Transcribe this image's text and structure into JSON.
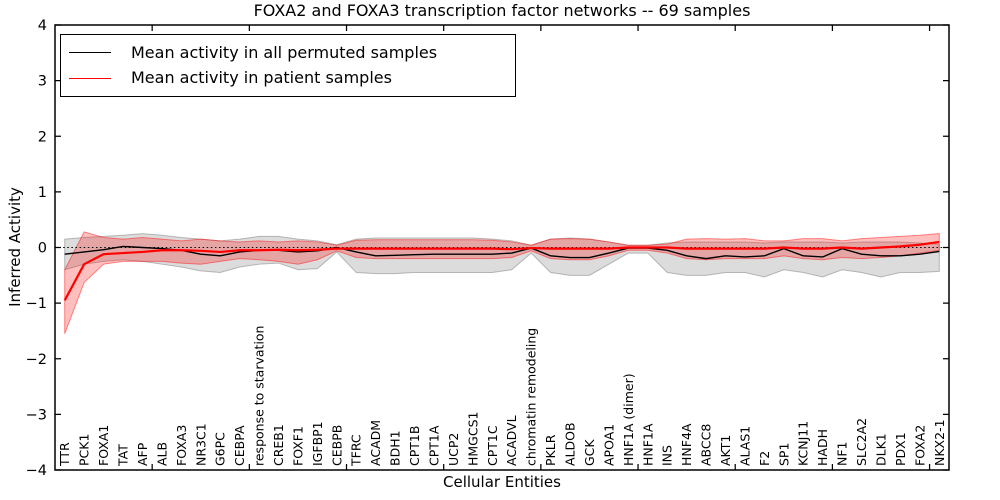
{
  "title": "FOXA2 and FOXA3 transcription factor networks -- 69 samples",
  "axes": {
    "x_label": "Cellular Entities",
    "y_label": "Inferred Activity",
    "y_ticks": [
      {
        "label": "4",
        "value": 4
      },
      {
        "label": "3",
        "value": 3
      },
      {
        "label": "2",
        "value": 2
      },
      {
        "label": "1",
        "value": 1
      },
      {
        "label": "0",
        "value": 0
      },
      {
        "label": "−1",
        "value": -1
      },
      {
        "label": "−2",
        "value": -2
      },
      {
        "label": "−3",
        "value": -3
      },
      {
        "label": "−4",
        "value": -4
      }
    ]
  },
  "legend": {
    "items": [
      {
        "label": "Mean activity in all permuted samples",
        "color": "#000000"
      },
      {
        "label": "Mean activity in patient samples",
        "color": "#ff0000"
      }
    ]
  },
  "colors": {
    "permuted_line": "#000000",
    "patient_line": "#ff0000",
    "permuted_band_fill": "rgba(130,130,130,0.28)",
    "permuted_band_edge": "rgba(110,110,110,0.45)",
    "patient_band_fill": "rgba(255,0,0,0.25)",
    "patient_band_edge": "rgba(255,0,0,0.45)",
    "reference_line": "#000000",
    "spine": "#000000"
  },
  "chart_data": {
    "type": "line",
    "title": "FOXA2 and FOXA3 transcription factor networks -- 69 samples",
    "xlabel": "Cellular Entities",
    "ylabel": "Inferred Activity",
    "ylim": [
      -4,
      4
    ],
    "grid": false,
    "legend_position": "upper left",
    "reference_line": {
      "y": 0,
      "style": "dotted",
      "color": "#000000"
    },
    "x_minor_tick_units": [
      5,
      10,
      15,
      20,
      25,
      30,
      35,
      40,
      45
    ],
    "categories": [
      "TTR",
      "PCK1",
      "FOXA1",
      "TAT",
      "AFP",
      "ALB",
      "FOXA3",
      "NR3C1",
      "G6PC",
      "CEBPA",
      "response to starvation",
      "CREB1",
      "FOXF1",
      "IGFBP1",
      "CEBPB",
      "TFRC",
      "ACADM",
      "BDH1",
      "CPT1B",
      "CPT1A",
      "UCP2",
      "HMGCS1",
      "CPT1C",
      "ACADVL",
      "chromatin remodeling",
      "PKLR",
      "ALDOB",
      "GCK",
      "APOA1",
      "HNF1A (dimer)",
      "HNF1A",
      "INS",
      "HNF4A",
      "ABCC8",
      "AKT1",
      "ALAS1",
      "F2",
      "SP1",
      "KCNJ11",
      "HADH",
      "NF1",
      "SLC2A2",
      "DLK1",
      "PDX1",
      "FOXA2",
      "NKX2-1"
    ],
    "series": [
      {
        "name": "Mean activity in all permuted samples",
        "color": "#000000",
        "line_width": 1.4,
        "values": [
          -0.12,
          -0.08,
          -0.04,
          0.02,
          0.0,
          -0.02,
          -0.05,
          -0.12,
          -0.15,
          -0.08,
          -0.05,
          -0.05,
          -0.08,
          -0.06,
          0.0,
          -0.08,
          -0.15,
          -0.14,
          -0.13,
          -0.12,
          -0.12,
          -0.12,
          -0.12,
          -0.1,
          -0.01,
          -0.15,
          -0.18,
          -0.18,
          -0.1,
          -0.01,
          -0.01,
          -0.05,
          -0.15,
          -0.2,
          -0.15,
          -0.17,
          -0.15,
          -0.02,
          -0.15,
          -0.17,
          -0.02,
          -0.12,
          -0.15,
          -0.15,
          -0.12,
          -0.07
        ],
        "band_upper": [
          0.15,
          0.18,
          0.2,
          0.22,
          0.25,
          0.22,
          0.18,
          0.15,
          0.12,
          0.15,
          0.2,
          0.2,
          0.15,
          0.12,
          0.05,
          0.15,
          0.17,
          0.17,
          0.17,
          0.17,
          0.17,
          0.17,
          0.15,
          0.12,
          0.04,
          0.15,
          0.17,
          0.15,
          0.1,
          0.04,
          0.04,
          0.08,
          0.1,
          0.1,
          0.1,
          0.1,
          0.08,
          0.1,
          0.1,
          0.1,
          0.08,
          0.1,
          0.1,
          0.1,
          0.08,
          0.06
        ],
        "band_lower": [
          -0.4,
          -0.3,
          -0.25,
          -0.22,
          -0.25,
          -0.3,
          -0.35,
          -0.42,
          -0.45,
          -0.35,
          -0.3,
          -0.28,
          -0.4,
          -0.38,
          -0.08,
          -0.45,
          -0.47,
          -0.47,
          -0.45,
          -0.45,
          -0.45,
          -0.45,
          -0.45,
          -0.4,
          -0.1,
          -0.45,
          -0.5,
          -0.5,
          -0.3,
          -0.1,
          -0.1,
          -0.45,
          -0.5,
          -0.5,
          -0.45,
          -0.45,
          -0.53,
          -0.4,
          -0.45,
          -0.53,
          -0.4,
          -0.45,
          -0.53,
          -0.45,
          -0.45,
          -0.43
        ]
      },
      {
        "name": "Mean activity in patient samples",
        "color": "#ff0000",
        "line_width": 2.2,
        "values": [
          -0.95,
          -0.3,
          -0.12,
          -0.1,
          -0.08,
          -0.05,
          -0.05,
          -0.06,
          -0.08,
          -0.05,
          -0.05,
          -0.04,
          -0.05,
          -0.04,
          -0.02,
          -0.02,
          -0.02,
          -0.02,
          -0.02,
          -0.02,
          -0.02,
          -0.02,
          -0.02,
          -0.03,
          -0.01,
          -0.02,
          -0.02,
          -0.02,
          -0.02,
          0.0,
          0.0,
          0.0,
          -0.02,
          -0.02,
          -0.02,
          -0.02,
          -0.02,
          0.0,
          -0.02,
          -0.02,
          0.0,
          -0.02,
          0.0,
          0.02,
          0.05,
          0.1
        ],
        "band_upper": [
          -0.4,
          0.28,
          0.18,
          0.15,
          0.18,
          0.15,
          0.12,
          0.15,
          0.12,
          0.1,
          0.12,
          0.1,
          0.12,
          0.1,
          0.04,
          0.13,
          0.14,
          0.14,
          0.14,
          0.14,
          0.14,
          0.14,
          0.13,
          0.1,
          0.04,
          0.15,
          0.16,
          0.15,
          0.1,
          0.04,
          0.04,
          0.06,
          0.15,
          0.16,
          0.15,
          0.16,
          0.12,
          0.12,
          0.16,
          0.16,
          0.12,
          0.16,
          0.18,
          0.2,
          0.22,
          0.25
        ],
        "band_lower": [
          -1.55,
          -0.63,
          -0.3,
          -0.25,
          -0.25,
          -0.25,
          -0.28,
          -0.3,
          -0.25,
          -0.2,
          -0.22,
          -0.25,
          -0.3,
          -0.22,
          -0.06,
          -0.18,
          -0.2,
          -0.2,
          -0.2,
          -0.2,
          -0.2,
          -0.2,
          -0.2,
          -0.18,
          -0.06,
          -0.2,
          -0.22,
          -0.22,
          -0.15,
          -0.05,
          -0.05,
          -0.1,
          -0.2,
          -0.22,
          -0.2,
          -0.2,
          -0.2,
          -0.15,
          -0.2,
          -0.22,
          -0.18,
          -0.2,
          -0.18,
          -0.15,
          -0.1,
          -0.05
        ]
      }
    ]
  }
}
